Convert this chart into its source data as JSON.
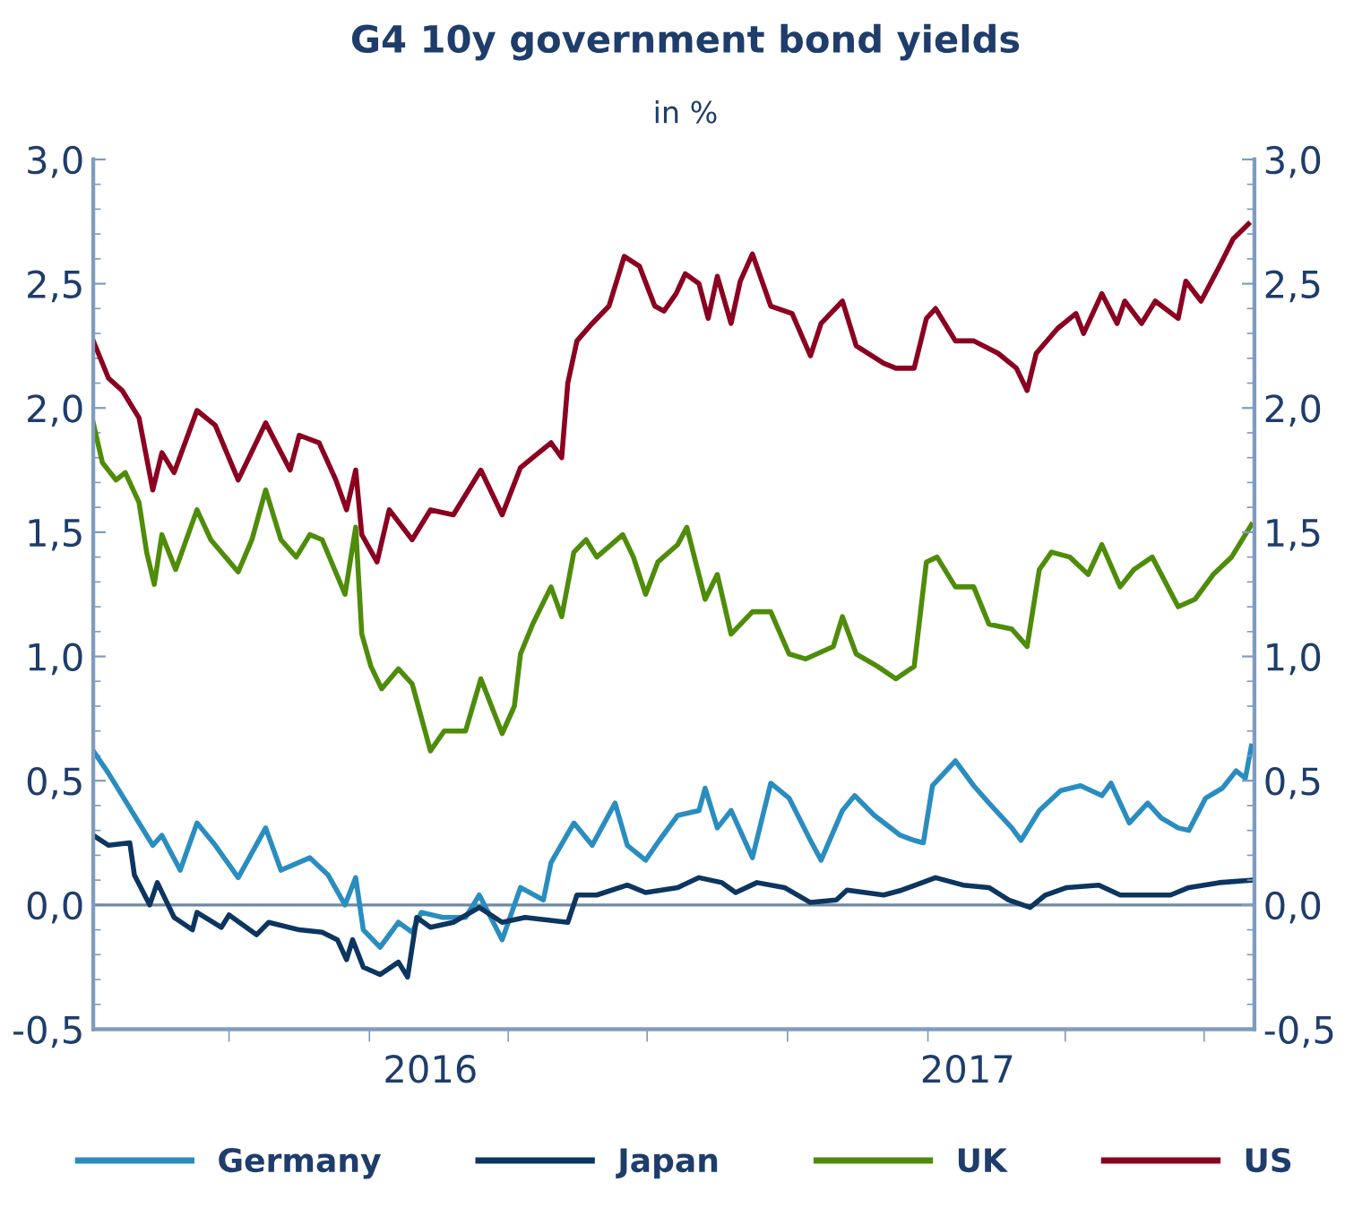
{
  "chart_data": {
    "type": "line",
    "title": "G4 10y government bond yields",
    "subtitle": "in %",
    "legend": "bottom",
    "grid": false,
    "marker": "none",
    "line_style": "solid",
    "xlim": [
      "2015-07-04",
      "2017-08-03"
    ],
    "xticks": [
      {
        "value": "2015-10-01",
        "label": null
      },
      {
        "value": "2016-01-01",
        "label": null
      },
      {
        "value": "2016-02-10",
        "label": "2016"
      },
      {
        "value": "2016-04-01",
        "label": null
      },
      {
        "value": "2016-07-01",
        "label": null
      },
      {
        "value": "2016-10-01",
        "label": null
      },
      {
        "value": "2017-01-01",
        "label": null
      },
      {
        "value": "2017-01-27",
        "label": "2017"
      },
      {
        "value": "2017-04-01",
        "label": null
      },
      {
        "value": "2017-07-01",
        "label": null
      }
    ],
    "ylim": [
      -0.5,
      3.0
    ],
    "yticks": [
      {
        "value": -0.5,
        "label": "-0,5"
      },
      {
        "value": -0.4,
        "label": null
      },
      {
        "value": -0.3,
        "label": null
      },
      {
        "value": -0.2,
        "label": null
      },
      {
        "value": -0.1,
        "label": null
      },
      {
        "value": 0,
        "label": "0,0"
      },
      {
        "value": 0.1,
        "label": null
      },
      {
        "value": 0.2,
        "label": null
      },
      {
        "value": 0.3,
        "label": null
      },
      {
        "value": 0.4,
        "label": null
      },
      {
        "value": 0.5,
        "label": "0,5"
      },
      {
        "value": 0.6,
        "label": null
      },
      {
        "value": 0.7,
        "label": null
      },
      {
        "value": 0.8,
        "label": null
      },
      {
        "value": 0.9,
        "label": null
      },
      {
        "value": 1.0,
        "label": "1,0"
      },
      {
        "value": 1.1,
        "label": null
      },
      {
        "value": 1.2,
        "label": null
      },
      {
        "value": 1.3,
        "label": null
      },
      {
        "value": 1.4,
        "label": null
      },
      {
        "value": 1.5,
        "label": "1,5"
      },
      {
        "value": 1.6,
        "label": null
      },
      {
        "value": 1.7,
        "label": null
      },
      {
        "value": 1.8,
        "label": null
      },
      {
        "value": 1.9,
        "label": null
      },
      {
        "value": 2.0,
        "label": "2,0"
      },
      {
        "value": 2.1,
        "label": null
      },
      {
        "value": 2.2,
        "label": null
      },
      {
        "value": 2.3,
        "label": null
      },
      {
        "value": 2.4,
        "label": null
      },
      {
        "value": 2.5,
        "label": "2,5"
      },
      {
        "value": 2.6,
        "label": null
      },
      {
        "value": 2.7,
        "label": null
      },
      {
        "value": 2.8,
        "label": null
      },
      {
        "value": 2.9,
        "label": null
      },
      {
        "value": 3.0,
        "label": "3,0"
      }
    ],
    "y2lim": [
      -0.5,
      3.0
    ],
    "y2ticks": [
      {
        "value": -0.5,
        "label": "-0,5"
      },
      {
        "value": -0.4,
        "label": null
      },
      {
        "value": -0.3,
        "label": null
      },
      {
        "value": -0.2,
        "label": null
      },
      {
        "value": -0.1,
        "label": null
      },
      {
        "value": 0,
        "label": "0,0"
      },
      {
        "value": 0.1,
        "label": null
      },
      {
        "value": 0.2,
        "label": null
      },
      {
        "value": 0.3,
        "label": null
      },
      {
        "value": 0.4,
        "label": null
      },
      {
        "value": 0.5,
        "label": "0,5"
      },
      {
        "value": 0.6,
        "label": null
      },
      {
        "value": 0.7,
        "label": null
      },
      {
        "value": 0.8,
        "label": null
      },
      {
        "value": 0.9,
        "label": null
      },
      {
        "value": 1.0,
        "label": "1,0"
      },
      {
        "value": 1.1,
        "label": null
      },
      {
        "value": 1.2,
        "label": null
      },
      {
        "value": 1.3,
        "label": null
      },
      {
        "value": 1.4,
        "label": null
      },
      {
        "value": 1.5,
        "label": "1,5"
      },
      {
        "value": 1.6,
        "label": null
      },
      {
        "value": 1.7,
        "label": null
      },
      {
        "value": 1.8,
        "label": null
      },
      {
        "value": 1.9,
        "label": null
      },
      {
        "value": 2.0,
        "label": "2,0"
      },
      {
        "value": 2.1,
        "label": null
      },
      {
        "value": 2.2,
        "label": null
      },
      {
        "value": 2.3,
        "label": null
      },
      {
        "value": 2.4,
        "label": null
      },
      {
        "value": 2.5,
        "label": "2,5"
      },
      {
        "value": 2.6,
        "label": null
      },
      {
        "value": 2.7,
        "label": null
      },
      {
        "value": 2.8,
        "label": null
      },
      {
        "value": 2.9,
        "label": null
      },
      {
        "value": 3.0,
        "label": "3,0"
      }
    ],
    "ref_lines": [
      {
        "axis": "y",
        "value": 0,
        "color": "#6f88a3"
      }
    ],
    "series": [
      {
        "name": "Germany",
        "color": "#2a8dbf",
        "x": [
          "2015-07-04",
          "2015-07-14",
          "2015-07-31",
          "2015-08-12",
          "2015-08-18",
          "2015-08-30",
          "2015-09-10",
          "2015-09-22",
          "2015-10-07",
          "2015-10-25",
          "2015-11-04",
          "2015-11-23",
          "2015-12-05",
          "2015-12-16",
          "2015-12-23",
          "2015-12-28",
          "2016-01-08",
          "2016-01-20",
          "2016-01-29",
          "2016-02-04",
          "2016-02-18",
          "2016-03-04",
          "2016-03-13",
          "2016-03-28",
          "2016-04-09",
          "2016-04-24",
          "2016-04-29",
          "2016-05-14",
          "2016-05-26",
          "2016-06-10",
          "2016-06-18",
          "2016-06-30",
          "2016-07-09",
          "2016-07-21",
          "2016-08-04",
          "2016-08-08",
          "2016-08-16",
          "2016-08-25",
          "2016-09-08",
          "2016-09-20",
          "2016-10-02",
          "2016-10-16",
          "2016-10-23",
          "2016-11-06",
          "2016-11-14",
          "2016-11-27",
          "2016-12-14",
          "2016-12-23",
          "2016-12-29",
          "2017-01-04",
          "2017-01-19",
          "2017-01-31",
          "2017-02-10",
          "2017-02-25",
          "2017-03-03",
          "2017-03-15",
          "2017-03-29",
          "2017-04-11",
          "2017-04-25",
          "2017-05-01",
          "2017-05-13",
          "2017-05-25",
          "2017-06-03",
          "2017-06-14",
          "2017-06-21",
          "2017-07-02",
          "2017-07-13",
          "2017-07-22",
          "2017-07-28",
          "2017-08-01"
        ],
        "values": [
          0.62,
          0.53,
          0.36,
          0.24,
          0.28,
          0.14,
          0.33,
          0.24,
          0.11,
          0.31,
          0.14,
          0.19,
          0.12,
          0.0,
          0.11,
          -0.1,
          -0.17,
          -0.07,
          -0.11,
          -0.03,
          -0.05,
          -0.05,
          0.04,
          -0.14,
          0.07,
          0.02,
          0.17,
          0.33,
          0.24,
          0.41,
          0.24,
          0.18,
          0.26,
          0.36,
          0.38,
          0.47,
          0.31,
          0.38,
          0.19,
          0.49,
          0.43,
          0.26,
          0.18,
          0.38,
          0.44,
          0.36,
          0.28,
          0.26,
          0.25,
          0.48,
          0.58,
          0.48,
          0.41,
          0.31,
          0.26,
          0.38,
          0.46,
          0.48,
          0.44,
          0.49,
          0.33,
          0.41,
          0.35,
          0.31,
          0.3,
          0.43,
          0.47,
          0.54,
          0.51,
          0.64
        ]
      },
      {
        "name": "Japan",
        "color": "#0c3560",
        "x": [
          "2015-07-04",
          "2015-07-14",
          "2015-07-28",
          "2015-07-31",
          "2015-08-10",
          "2015-08-15",
          "2015-08-26",
          "2015-09-07",
          "2015-09-10",
          "2015-09-26",
          "2015-10-01",
          "2015-10-19",
          "2015-10-27",
          "2015-11-16",
          "2015-12-01",
          "2015-12-11",
          "2015-12-17",
          "2015-12-21",
          "2015-12-28",
          "2016-01-08",
          "2016-01-20",
          "2016-01-26",
          "2016-02-01",
          "2016-02-10",
          "2016-02-25",
          "2016-03-13",
          "2016-03-28",
          "2016-04-12",
          "2016-05-10",
          "2016-05-16",
          "2016-05-29",
          "2016-06-18",
          "2016-06-30",
          "2016-07-21",
          "2016-08-04",
          "2016-08-19",
          "2016-08-28",
          "2016-09-11",
          "2016-09-29",
          "2016-10-16",
          "2016-11-02",
          "2016-11-09",
          "2016-12-03",
          "2016-12-15",
          "2017-01-06",
          "2017-01-24",
          "2017-02-10",
          "2017-02-23",
          "2017-03-09",
          "2017-03-19",
          "2017-04-02",
          "2017-04-23",
          "2017-05-07",
          "2017-05-21",
          "2017-06-09",
          "2017-06-21",
          "2017-07-11",
          "2017-08-01"
        ],
        "values": [
          0.28,
          0.24,
          0.25,
          0.12,
          0.0,
          0.09,
          -0.05,
          -0.1,
          -0.03,
          -0.09,
          -0.04,
          -0.12,
          -0.07,
          -0.1,
          -0.11,
          -0.14,
          -0.22,
          -0.14,
          -0.25,
          -0.28,
          -0.23,
          -0.29,
          -0.05,
          -0.09,
          -0.07,
          -0.01,
          -0.07,
          -0.05,
          -0.07,
          0.04,
          0.04,
          0.08,
          0.05,
          0.07,
          0.11,
          0.09,
          0.05,
          0.09,
          0.07,
          0.01,
          0.02,
          0.06,
          0.04,
          0.06,
          0.11,
          0.08,
          0.07,
          0.02,
          -0.01,
          0.04,
          0.07,
          0.08,
          0.04,
          0.04,
          0.04,
          0.07,
          0.09,
          0.1
        ]
      },
      {
        "name": "UK",
        "color": "#4e8c0a",
        "x": [
          "2015-07-04",
          "2015-07-10",
          "2015-07-19",
          "2015-07-25",
          "2015-08-03",
          "2015-08-08",
          "2015-08-13",
          "2015-08-18",
          "2015-08-27",
          "2015-09-10",
          "2015-09-19",
          "2015-10-07",
          "2015-10-16",
          "2015-10-25",
          "2015-11-04",
          "2015-11-14",
          "2015-11-23",
          "2015-12-01",
          "2015-12-16",
          "2015-12-23",
          "2015-12-27",
          "2016-01-02",
          "2016-01-09",
          "2016-01-20",
          "2016-01-29",
          "2016-02-10",
          "2016-02-19",
          "2016-03-04",
          "2016-03-14",
          "2016-03-28",
          "2016-04-05",
          "2016-04-09",
          "2016-04-17",
          "2016-04-29",
          "2016-05-06",
          "2016-05-14",
          "2016-05-22",
          "2016-05-29",
          "2016-06-15",
          "2016-06-22",
          "2016-06-30",
          "2016-07-08",
          "2016-07-21",
          "2016-07-27",
          "2016-08-08",
          "2016-08-16",
          "2016-08-25",
          "2016-09-08",
          "2016-09-20",
          "2016-10-02",
          "2016-10-13",
          "2016-10-31",
          "2016-11-06",
          "2016-11-15",
          "2016-11-29",
          "2016-12-11",
          "2016-12-23",
          "2016-12-31",
          "2017-01-07",
          "2017-01-19",
          "2017-01-31",
          "2017-02-10",
          "2017-02-25",
          "2017-03-07",
          "2017-03-15",
          "2017-03-23",
          "2017-04-04",
          "2017-04-16",
          "2017-04-25",
          "2017-05-07",
          "2017-05-16",
          "2017-05-28",
          "2017-06-14",
          "2017-06-25",
          "2017-07-07",
          "2017-07-19",
          "2017-08-01"
        ],
        "values": [
          1.94,
          1.78,
          1.71,
          1.74,
          1.62,
          1.42,
          1.29,
          1.49,
          1.35,
          1.59,
          1.47,
          1.34,
          1.47,
          1.67,
          1.47,
          1.4,
          1.49,
          1.47,
          1.25,
          1.52,
          1.09,
          0.96,
          0.87,
          0.95,
          0.89,
          0.62,
          0.7,
          0.7,
          0.91,
          0.69,
          0.8,
          1.01,
          1.13,
          1.28,
          1.16,
          1.42,
          1.47,
          1.4,
          1.49,
          1.4,
          1.25,
          1.38,
          1.45,
          1.52,
          1.23,
          1.33,
          1.09,
          1.18,
          1.18,
          1.01,
          0.99,
          1.04,
          1.16,
          1.01,
          0.96,
          0.91,
          0.96,
          1.38,
          1.4,
          1.28,
          1.28,
          1.13,
          1.11,
          1.04,
          1.35,
          1.42,
          1.4,
          1.33,
          1.45,
          1.28,
          1.35,
          1.4,
          1.2,
          1.23,
          1.33,
          1.4,
          1.53
        ]
      },
      {
        "name": "US",
        "color": "#8b0020",
        "x": [
          "2015-07-04",
          "2015-07-14",
          "2015-07-23",
          "2015-08-03",
          "2015-08-12",
          "2015-08-18",
          "2015-08-26",
          "2015-09-10",
          "2015-09-22",
          "2015-10-07",
          "2015-10-25",
          "2015-11-10",
          "2015-11-16",
          "2015-11-29",
          "2015-12-10",
          "2015-12-17",
          "2015-12-23",
          "2015-12-27",
          "2016-01-06",
          "2016-01-14",
          "2016-01-29",
          "2016-02-10",
          "2016-02-25",
          "2016-03-14",
          "2016-03-28",
          "2016-04-09",
          "2016-04-29",
          "2016-05-06",
          "2016-05-10",
          "2016-05-16",
          "2016-05-26",
          "2016-06-06",
          "2016-06-16",
          "2016-06-26",
          "2016-07-06",
          "2016-07-12",
          "2016-07-20",
          "2016-07-26",
          "2016-08-04",
          "2016-08-10",
          "2016-08-16",
          "2016-08-25",
          "2016-08-31",
          "2016-09-08",
          "2016-09-20",
          "2016-10-04",
          "2016-10-16",
          "2016-10-23",
          "2016-11-06",
          "2016-11-15",
          "2016-12-03",
          "2016-12-11",
          "2016-12-23",
          "2016-12-31",
          "2017-01-06",
          "2017-01-19",
          "2017-01-31",
          "2017-02-16",
          "2017-02-28",
          "2017-03-07",
          "2017-03-13",
          "2017-03-27",
          "2017-04-08",
          "2017-04-13",
          "2017-04-25",
          "2017-05-05",
          "2017-05-10",
          "2017-05-21",
          "2017-05-30",
          "2017-06-14",
          "2017-06-19",
          "2017-06-29",
          "2017-07-11",
          "2017-07-20",
          "2017-07-30"
        ],
        "values": [
          2.27,
          2.12,
          2.07,
          1.96,
          1.67,
          1.82,
          1.74,
          1.99,
          1.93,
          1.71,
          1.94,
          1.75,
          1.89,
          1.86,
          1.71,
          1.59,
          1.75,
          1.49,
          1.38,
          1.59,
          1.47,
          1.59,
          1.57,
          1.75,
          1.57,
          1.76,
          1.86,
          1.8,
          2.1,
          2.27,
          2.34,
          2.41,
          2.61,
          2.57,
          2.41,
          2.39,
          2.46,
          2.54,
          2.5,
          2.36,
          2.53,
          2.34,
          2.51,
          2.62,
          2.41,
          2.38,
          2.21,
          2.34,
          2.43,
          2.25,
          2.18,
          2.16,
          2.16,
          2.36,
          2.4,
          2.27,
          2.27,
          2.22,
          2.16,
          2.07,
          2.22,
          2.32,
          2.38,
          2.3,
          2.46,
          2.34,
          2.43,
          2.34,
          2.43,
          2.36,
          2.51,
          2.43,
          2.57,
          2.68,
          2.74
        ]
      }
    ]
  }
}
